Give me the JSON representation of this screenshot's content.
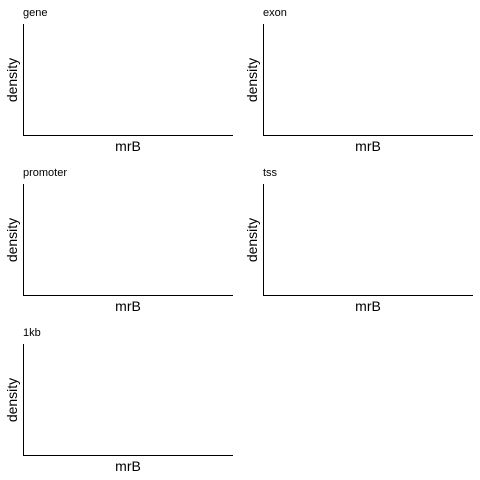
{
  "chart_data": [
    {
      "type": "line",
      "title": "gene",
      "xlabel": "mrB",
      "ylabel": "density",
      "series": []
    },
    {
      "type": "line",
      "title": "exon",
      "xlabel": "mrB",
      "ylabel": "density",
      "series": []
    },
    {
      "type": "line",
      "title": "promoter",
      "xlabel": "mrB",
      "ylabel": "density",
      "series": []
    },
    {
      "type": "line",
      "title": "tss",
      "xlabel": "mrB",
      "ylabel": "density",
      "series": []
    },
    {
      "type": "line",
      "title": "1kb",
      "xlabel": "mrB",
      "ylabel": "density",
      "series": []
    }
  ]
}
